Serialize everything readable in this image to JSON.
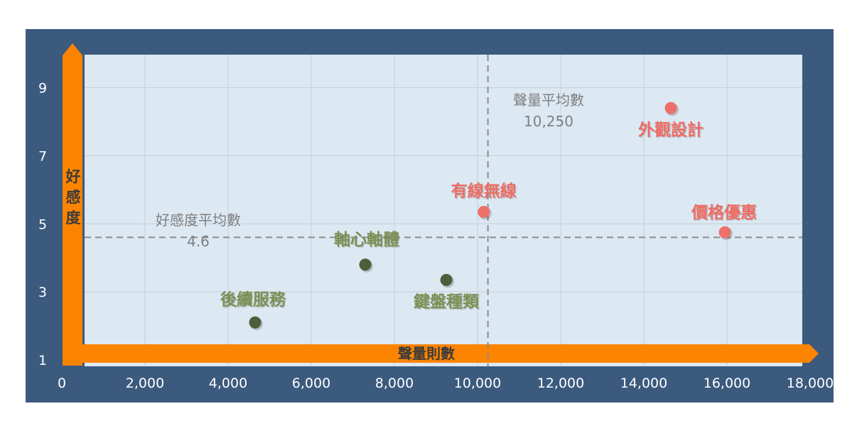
{
  "chart_data": {
    "type": "scatter",
    "xlabel": "聲量則數",
    "ylabel": "好感度",
    "xlim": [
      0,
      18000
    ],
    "ylim": [
      1,
      10
    ],
    "x_ticks": [
      "0",
      "2,000",
      "4,000",
      "6,000",
      "8,000",
      "10,000",
      "12,000",
      "14,000",
      "16,000",
      "18,000"
    ],
    "x_tick_values": [
      0,
      2000,
      4000,
      6000,
      8000,
      10000,
      12000,
      14000,
      16000,
      18000
    ],
    "y_ticks": [
      "1",
      "3",
      "5",
      "7",
      "9"
    ],
    "y_tick_values": [
      1,
      3,
      5,
      7,
      9
    ],
    "grid": true,
    "points": [
      {
        "label": "後續服務",
        "x": 4650,
        "y": 2.1,
        "group": "low"
      },
      {
        "label": "軸心軸體",
        "x": 7300,
        "y": 3.8,
        "group": "low"
      },
      {
        "label": "鍵盤種類",
        "x": 9250,
        "y": 3.35,
        "group": "low"
      },
      {
        "label": "有線無線",
        "x": 10150,
        "y": 5.35,
        "group": "high"
      },
      {
        "label": "外觀設計",
        "x": 14650,
        "y": 8.4,
        "group": "high"
      },
      {
        "label": "價格優惠",
        "x": 15950,
        "y": 4.75,
        "group": "high"
      }
    ],
    "reference_lines": {
      "x_mean": {
        "label": "聲量平均數",
        "value": 10250,
        "value_text": "10,250"
      },
      "y_mean": {
        "label": "好感度平均數",
        "value": 4.6,
        "value_text": "4.6"
      }
    },
    "colors": {
      "frame": "#3b5a7e",
      "plot_bg": "#dce9f3",
      "grid": "#c9d2da",
      "axis_arrow": "#fc8400",
      "low_point": "#4e5d3c",
      "low_label": "#7d8f54",
      "high_point": "#ed706a",
      "high_label": "#ee6c63",
      "ref_line": "#8c8c8c",
      "ref_text": "#7f7f7f",
      "tick_text": "#ffffff",
      "axis_title": "#3b3b3b"
    }
  }
}
